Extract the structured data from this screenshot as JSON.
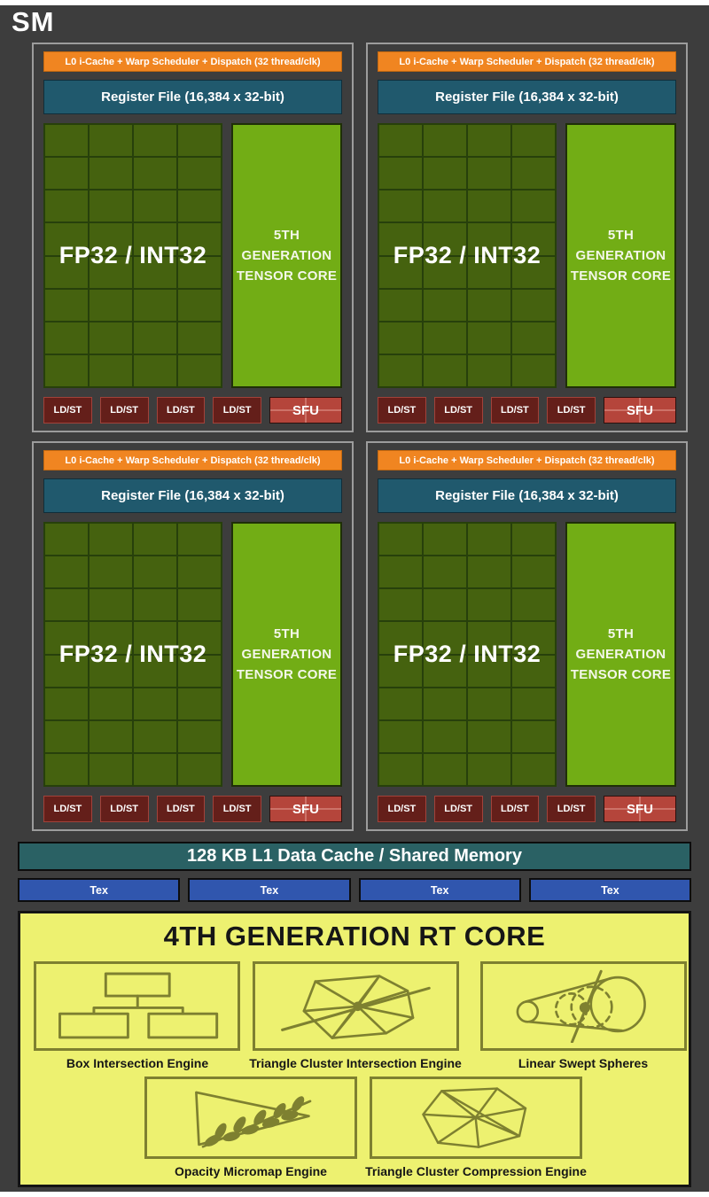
{
  "title": "SM",
  "partition_count": 4,
  "partition": {
    "scheduler_label": "L0 i-Cache + Warp Scheduler + Dispatch (32 thread/clk)",
    "register_file_label": "Register File (16,384 x 32-bit)",
    "core_label": "FP32 / INT32",
    "core_grid": {
      "columns": 4,
      "rows": 8
    },
    "tensor_core_lines": [
      "5TH",
      "GENERATION",
      "TENSOR CORE"
    ],
    "ldst_label": "LD/ST",
    "ldst_count": 4,
    "sfu_label": "SFU"
  },
  "memory": {
    "l1_label": "128 KB L1 Data Cache / Shared Memory",
    "tex_label": "Tex",
    "tex_count": 4
  },
  "rt_core": {
    "title": "4TH GENERATION RT CORE",
    "engines": [
      {
        "name": "box-intersection-engine",
        "label": "Box Intersection Engine"
      },
      {
        "name": "triangle-cluster-intersection-engine",
        "label": "Triangle Cluster Intersection Engine"
      },
      {
        "name": "linear-swept-spheres",
        "label": "Linear Swept Spheres"
      },
      {
        "name": "opacity-micromap-engine",
        "label": "Opacity Micromap Engine"
      },
      {
        "name": "triangle-cluster-compression-engine",
        "label": "Triangle Cluster Compression Engine"
      }
    ]
  },
  "colors": {
    "bg_dark": "#3d3d3d",
    "partition_border": "#9c9c9c",
    "scheduler_orange": "#f08521",
    "scheduler_border": "#c4680e",
    "register_teal": "#20596d",
    "register_border": "#102e3a",
    "core_green": "#45620f",
    "core_grid_line": "#27400b",
    "tensor_green": "#72ad15",
    "tensor_border": "#1f2f08",
    "ldst_red": "#641f1a",
    "ldst_border": "#a2423a",
    "sfu_red": "#b5453b",
    "sfu_line": "#cd7268",
    "sfu_border": "#2d100d",
    "l1_teal": "#2a6164",
    "tex_blue": "#3056ae",
    "block_border_dark": "#0d0d0d",
    "rt_yellow": "#edf170",
    "rt_border": "#141414",
    "rt_stroke": "#7e8030",
    "text_light": "#ffffff",
    "text_dark": "#161616"
  }
}
